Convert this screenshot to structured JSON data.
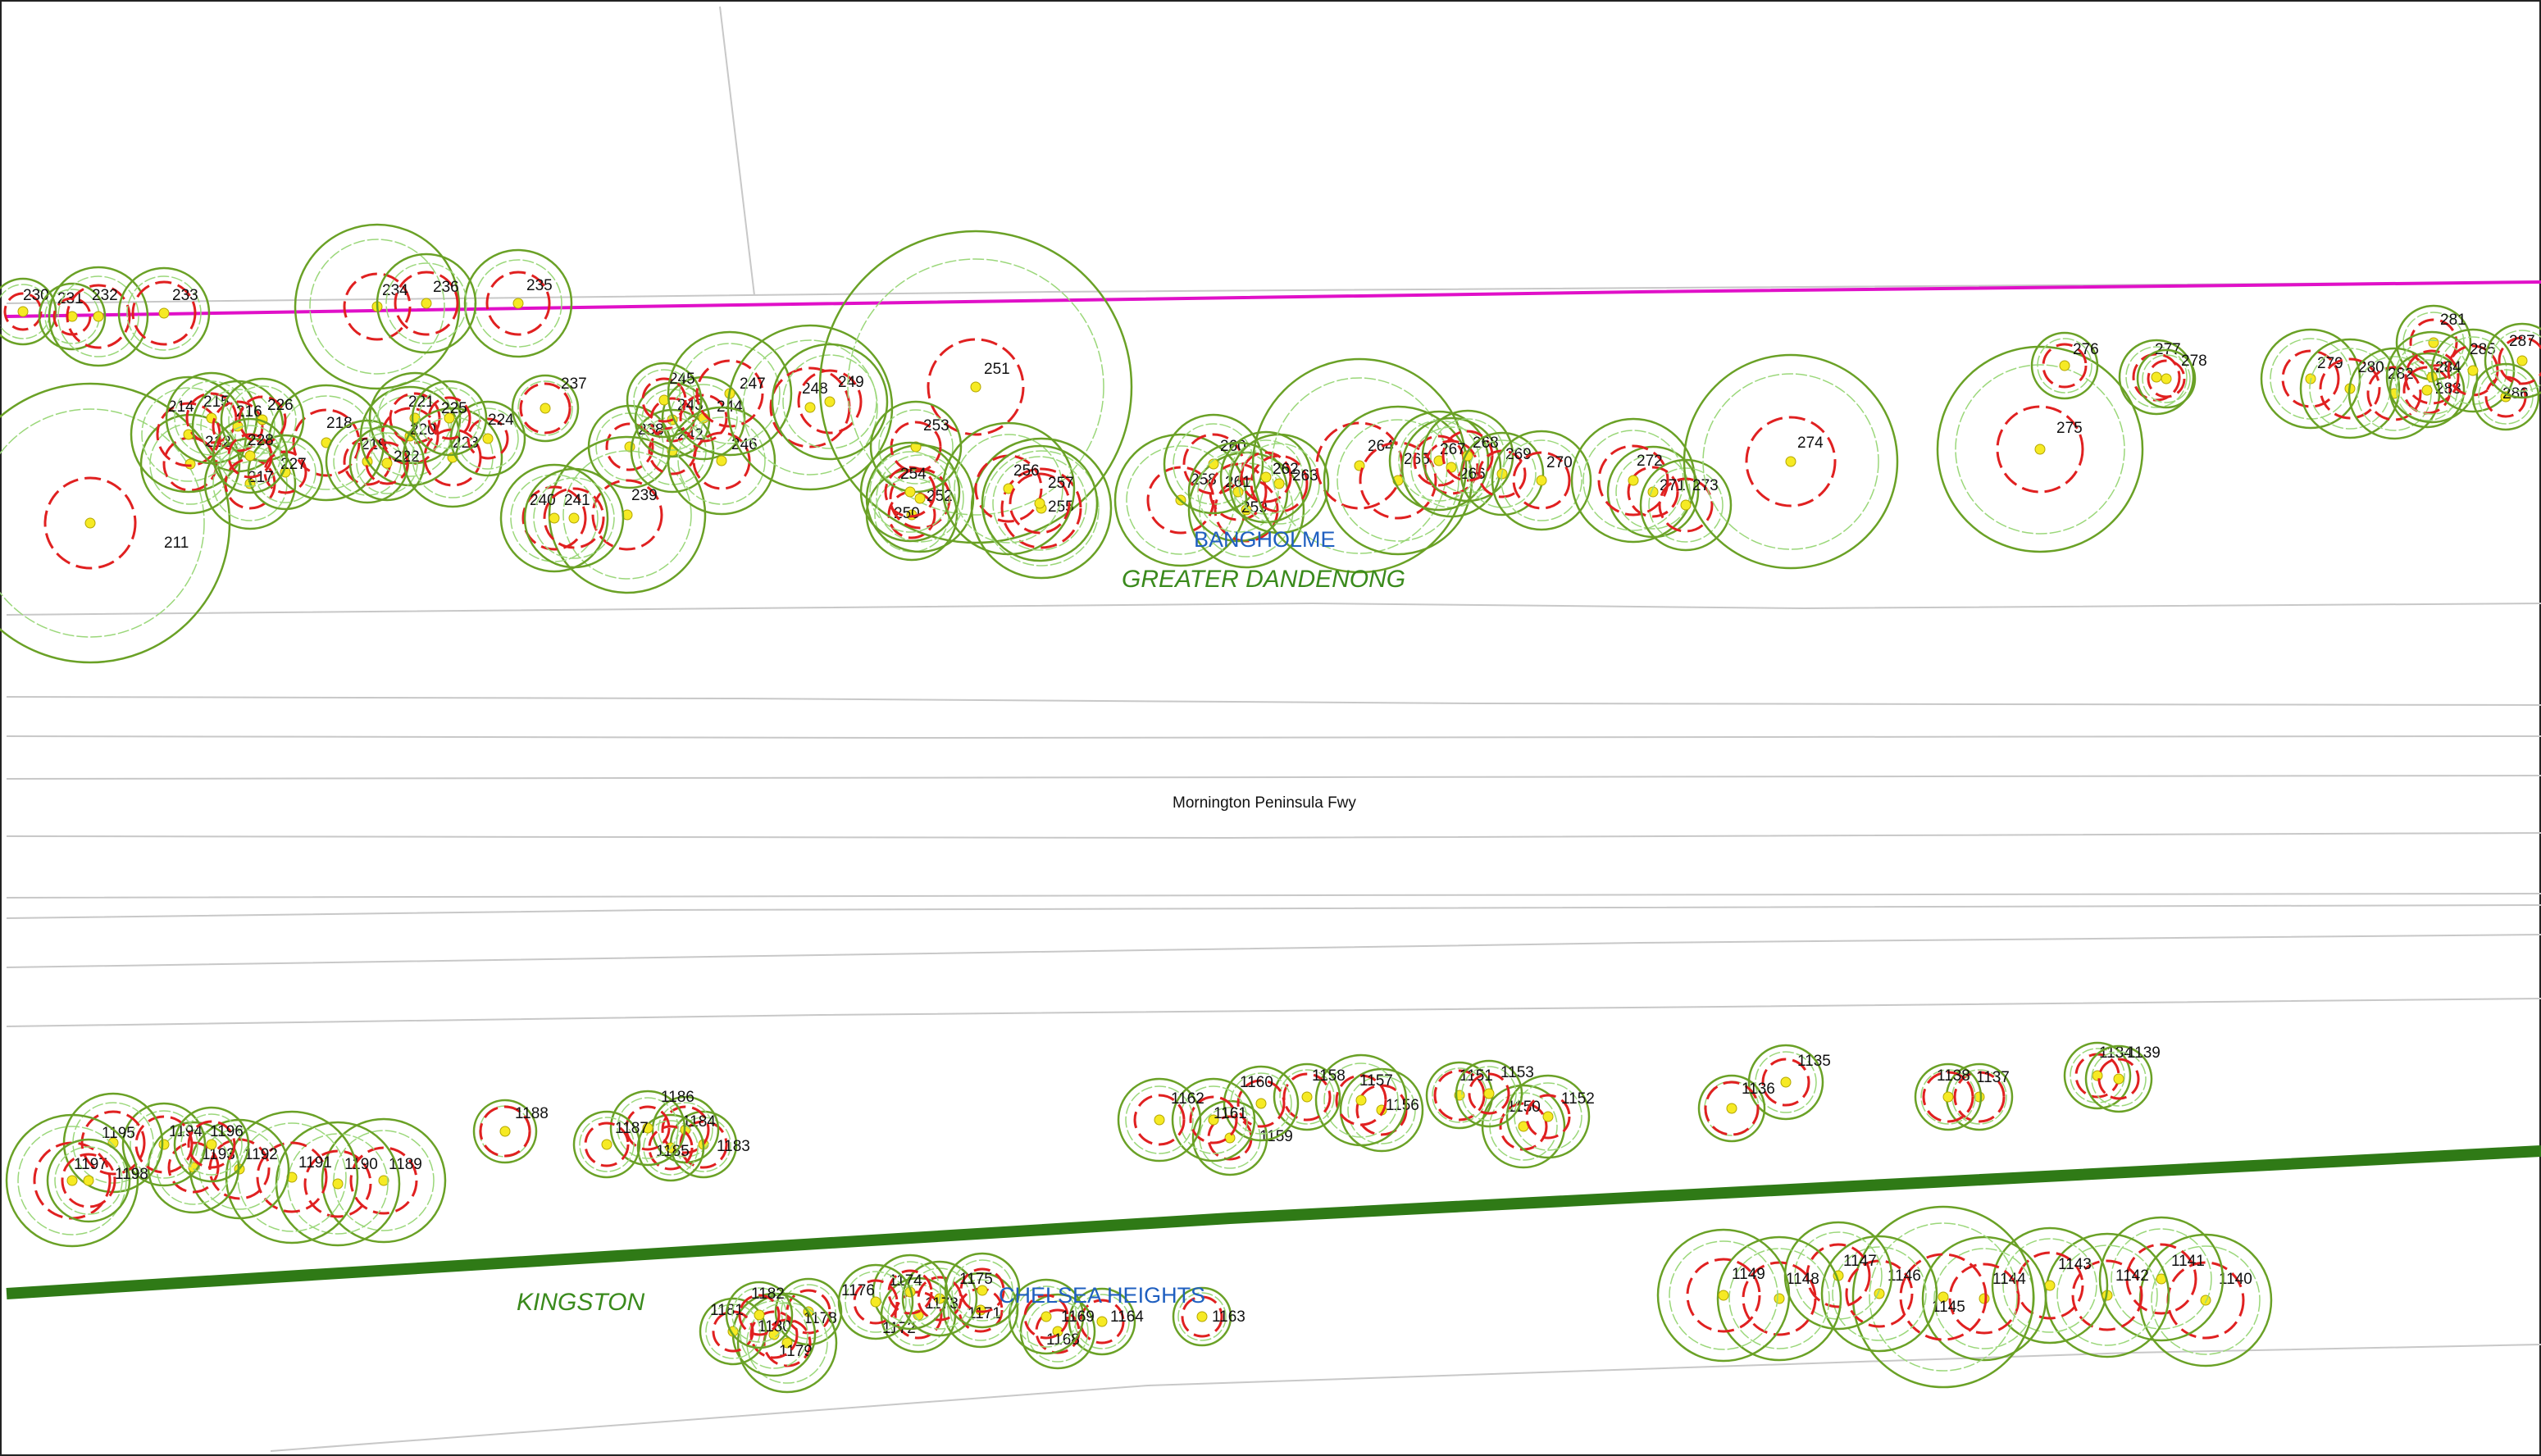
{
  "colors": {
    "tpz": "#6aa126",
    "canopy": "#9bd77a",
    "srz": "#e02020",
    "trunk_fill": "#f6ea24",
    "trunk_stroke": "#b3a600",
    "boundary": "#e010c8",
    "lga_boundary": "#2f7a16",
    "road_lines": "#c8c8c8",
    "suburb_label": "#1f5fc0",
    "lga_label": "#3a8a1c"
  },
  "labels": {
    "road": "Mornington Peninsula Fwy",
    "suburb_bangholme": "BANGHOLME",
    "suburb_chelsea_heights": "CHELSEA HEIGHTS",
    "lga_greater_dandenong": "GREATER DANDENONG",
    "lga_kingston": "KINGSTON"
  },
  "trees": [
    {
      "id": "211"
    },
    {
      "id": "212"
    },
    {
      "id": "214"
    },
    {
      "id": "215"
    },
    {
      "id": "216"
    },
    {
      "id": "217"
    },
    {
      "id": "218"
    },
    {
      "id": "219"
    },
    {
      "id": "220"
    },
    {
      "id": "221"
    },
    {
      "id": "222"
    },
    {
      "id": "223"
    },
    {
      "id": "224"
    },
    {
      "id": "225"
    },
    {
      "id": "226"
    },
    {
      "id": "227"
    },
    {
      "id": "228"
    },
    {
      "id": "230"
    },
    {
      "id": "231"
    },
    {
      "id": "232"
    },
    {
      "id": "233"
    },
    {
      "id": "234"
    },
    {
      "id": "235"
    },
    {
      "id": "236"
    },
    {
      "id": "237"
    },
    {
      "id": "238"
    },
    {
      "id": "239"
    },
    {
      "id": "240"
    },
    {
      "id": "241"
    },
    {
      "id": "242"
    },
    {
      "id": "243"
    },
    {
      "id": "244"
    },
    {
      "id": "245"
    },
    {
      "id": "246"
    },
    {
      "id": "247"
    },
    {
      "id": "248"
    },
    {
      "id": "249"
    },
    {
      "id": "250"
    },
    {
      "id": "251"
    },
    {
      "id": "252"
    },
    {
      "id": "253"
    },
    {
      "id": "254"
    },
    {
      "id": "255"
    },
    {
      "id": "256"
    },
    {
      "id": "257"
    },
    {
      "id": "258"
    },
    {
      "id": "259"
    },
    {
      "id": "260"
    },
    {
      "id": "261"
    },
    {
      "id": "262"
    },
    {
      "id": "263"
    },
    {
      "id": "264"
    },
    {
      "id": "265"
    },
    {
      "id": "266"
    },
    {
      "id": "267"
    },
    {
      "id": "268"
    },
    {
      "id": "269"
    },
    {
      "id": "270"
    },
    {
      "id": "271"
    },
    {
      "id": "272"
    },
    {
      "id": "273"
    },
    {
      "id": "274"
    },
    {
      "id": "275"
    },
    {
      "id": "276"
    },
    {
      "id": "277"
    },
    {
      "id": "278"
    },
    {
      "id": "279"
    },
    {
      "id": "280"
    },
    {
      "id": "281"
    },
    {
      "id": "282"
    },
    {
      "id": "283"
    },
    {
      "id": "284"
    },
    {
      "id": "285"
    },
    {
      "id": "286"
    },
    {
      "id": "287"
    },
    {
      "id": "1134"
    },
    {
      "id": "1135"
    },
    {
      "id": "1136"
    },
    {
      "id": "1137"
    },
    {
      "id": "1138"
    },
    {
      "id": "1139"
    },
    {
      "id": "1140"
    },
    {
      "id": "1141"
    },
    {
      "id": "1142"
    },
    {
      "id": "1143"
    },
    {
      "id": "1144"
    },
    {
      "id": "1145"
    },
    {
      "id": "1146"
    },
    {
      "id": "1147"
    },
    {
      "id": "1148"
    },
    {
      "id": "1149"
    },
    {
      "id": "1150"
    },
    {
      "id": "1151"
    },
    {
      "id": "1152"
    },
    {
      "id": "1153"
    },
    {
      "id": "1156"
    },
    {
      "id": "1157"
    },
    {
      "id": "1158"
    },
    {
      "id": "1159"
    },
    {
      "id": "1160"
    },
    {
      "id": "1161"
    },
    {
      "id": "1162"
    },
    {
      "id": "1163"
    },
    {
      "id": "1164"
    },
    {
      "id": "1168"
    },
    {
      "id": "1169"
    },
    {
      "id": "1171"
    },
    {
      "id": "1172"
    },
    {
      "id": "1173"
    },
    {
      "id": "1174"
    },
    {
      "id": "1175"
    },
    {
      "id": "1176"
    },
    {
      "id": "1178"
    },
    {
      "id": "1179"
    },
    {
      "id": "1180"
    },
    {
      "id": "1181"
    },
    {
      "id": "1182"
    },
    {
      "id": "1183"
    },
    {
      "id": "1184"
    },
    {
      "id": "1185"
    },
    {
      "id": "1186"
    },
    {
      "id": "1187"
    },
    {
      "id": "1188"
    },
    {
      "id": "1189"
    },
    {
      "id": "1190"
    },
    {
      "id": "1191"
    },
    {
      "id": "1192"
    },
    {
      "id": "1193"
    },
    {
      "id": "1194"
    },
    {
      "id": "1195"
    },
    {
      "id": "1196"
    },
    {
      "id": "1197"
    },
    {
      "id": "1198"
    }
  ]
}
